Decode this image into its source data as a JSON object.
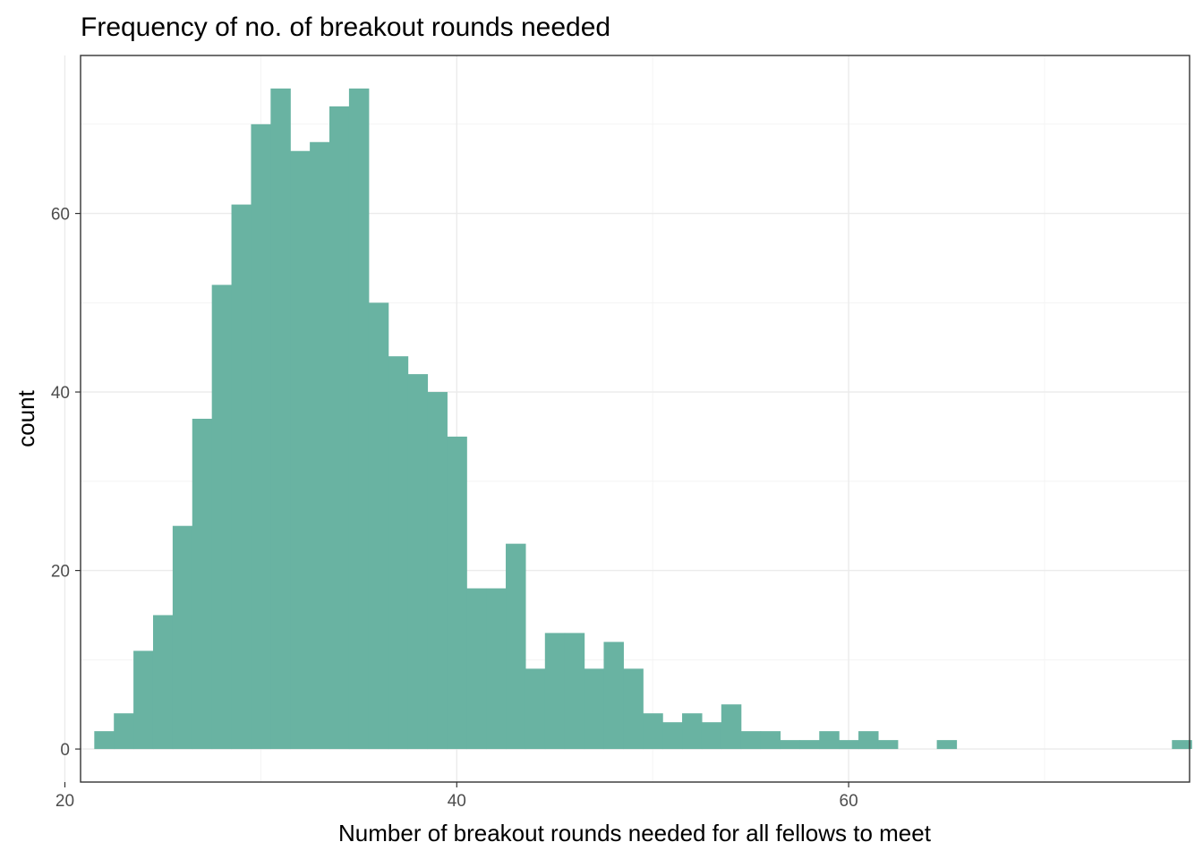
{
  "chart_data": {
    "type": "bar",
    "title": "Frequency of no. of breakout rounds needed",
    "xlabel": "Number of breakout rounds needed for all fellows to meet",
    "ylabel": "count",
    "binwidth": 1,
    "x": [
      22,
      23,
      24,
      25,
      26,
      27,
      28,
      29,
      30,
      31,
      32,
      33,
      34,
      35,
      36,
      37,
      38,
      39,
      40,
      41,
      42,
      43,
      44,
      45,
      46,
      47,
      48,
      49,
      50,
      51,
      52,
      53,
      54,
      55,
      56,
      57,
      58,
      59,
      60,
      61,
      62,
      63,
      64,
      65,
      66,
      67,
      68,
      69,
      70,
      71,
      72,
      73,
      74,
      75,
      76,
      77
    ],
    "values": [
      2,
      4,
      11,
      15,
      25,
      37,
      52,
      61,
      70,
      74,
      67,
      68,
      72,
      74,
      50,
      44,
      42,
      40,
      35,
      18,
      18,
      23,
      9,
      13,
      13,
      9,
      12,
      9,
      4,
      3,
      4,
      3,
      5,
      2,
      2,
      1,
      1,
      2,
      1,
      2,
      1,
      0,
      0,
      1,
      0,
      0,
      0,
      0,
      0,
      0,
      0,
      0,
      0,
      0,
      0,
      1
    ],
    "xlim": [
      20.8,
      77.4
    ],
    "ylim": [
      -3.7,
      77.7
    ],
    "x_ticks": [
      20,
      40,
      60
    ],
    "x_tick_labels": [
      "20",
      "40",
      "60"
    ],
    "y_ticks": [
      0,
      20,
      40,
      60
    ],
    "y_tick_labels": [
      "0",
      "20",
      "40",
      "60"
    ],
    "fill_color": "#69b3a2",
    "grid": true,
    "legend": "none"
  }
}
